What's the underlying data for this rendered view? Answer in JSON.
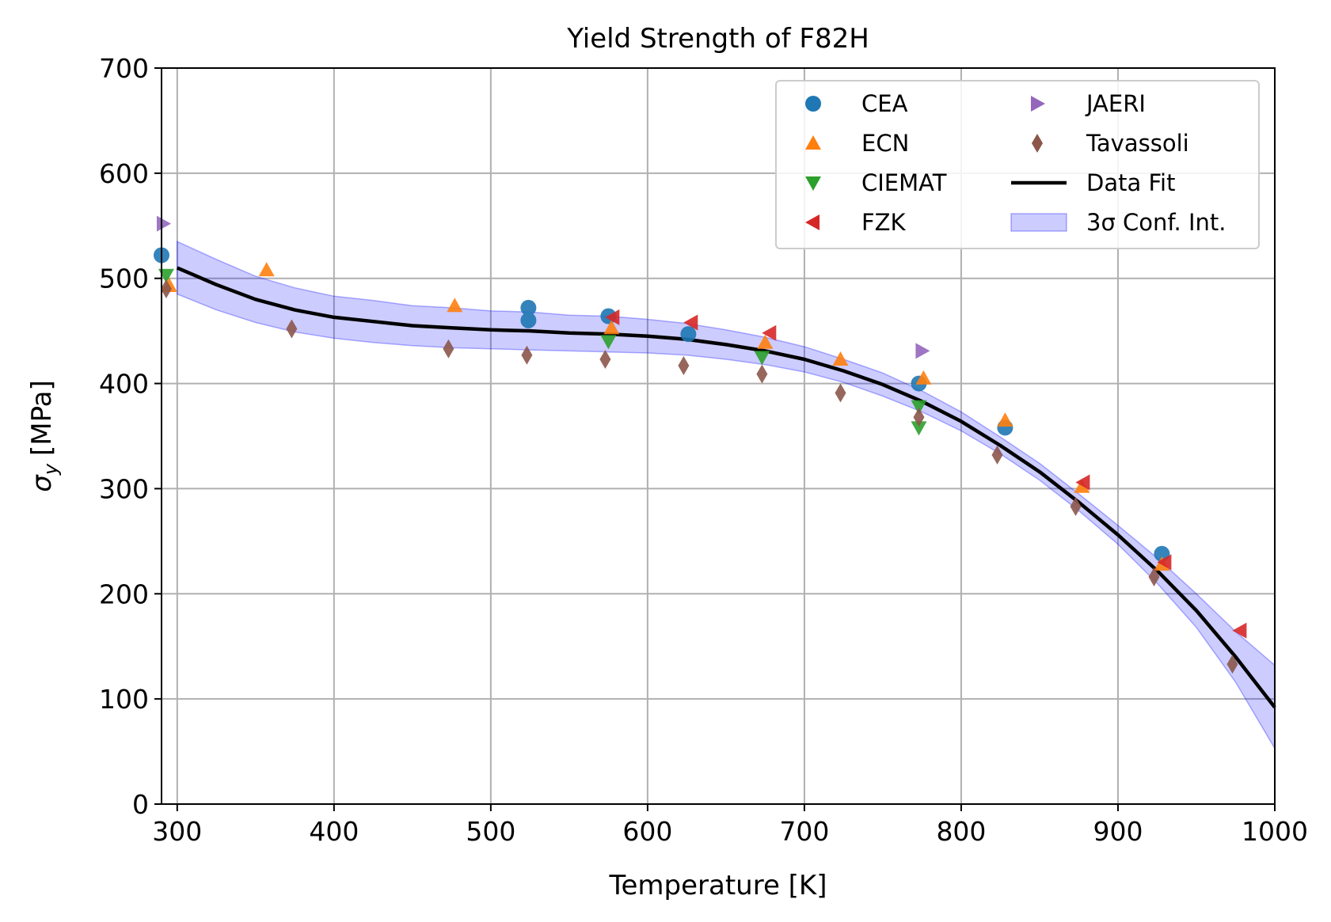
{
  "chart_data": {
    "type": "scatter",
    "title": "Yield Strength of F82H",
    "xlabel": "Temperature [K]",
    "ylabel_symbol": "σ",
    "ylabel_sub": "y",
    "ylabel_unit": "[MPa]",
    "xlim": [
      290,
      1000
    ],
    "ylim": [
      0,
      700
    ],
    "xticks": [
      300,
      400,
      500,
      600,
      700,
      800,
      900,
      1000
    ],
    "yticks": [
      0,
      100,
      200,
      300,
      400,
      500,
      600,
      700
    ],
    "grid": true,
    "legend_position": "top-right",
    "legend_columns": 2,
    "series": [
      {
        "name": "CEA",
        "marker": "circle",
        "color": "#1f77b4",
        "points": [
          [
            290,
            522
          ],
          [
            524,
            472
          ],
          [
            524,
            460
          ],
          [
            575,
            464
          ],
          [
            626,
            447
          ],
          [
            773,
            400
          ],
          [
            828,
            358
          ],
          [
            928,
            238
          ]
        ]
      },
      {
        "name": "ECN",
        "marker": "triangle-up",
        "color": "#ff7f0e",
        "points": [
          [
            295,
            493
          ],
          [
            357,
            508
          ],
          [
            477,
            474
          ],
          [
            577,
            453
          ],
          [
            675,
            439
          ],
          [
            723,
            423
          ],
          [
            776,
            405
          ],
          [
            828,
            365
          ],
          [
            877,
            302
          ],
          [
            928,
            228
          ]
        ]
      },
      {
        "name": "CIEMAT",
        "marker": "triangle-down",
        "color": "#2ca02c",
        "points": [
          [
            293,
            503
          ],
          [
            575,
            440
          ],
          [
            673,
            425
          ],
          [
            773,
            378
          ],
          [
            773,
            358
          ]
        ]
      },
      {
        "name": "FZK",
        "marker": "triangle-left",
        "color": "#d62728",
        "points": [
          [
            578,
            463
          ],
          [
            628,
            458
          ],
          [
            678,
            448
          ],
          [
            878,
            306
          ],
          [
            930,
            230
          ],
          [
            978,
            165
          ]
        ]
      },
      {
        "name": "JAERI",
        "marker": "triangle-right",
        "color": "#9467bd",
        "points": [
          [
            291,
            552
          ],
          [
            775,
            431
          ]
        ]
      },
      {
        "name": "Tavassoli",
        "marker": "thin-diamond",
        "color": "#8c564b",
        "points": [
          [
            293,
            490
          ],
          [
            373,
            452
          ],
          [
            473,
            433
          ],
          [
            523,
            427
          ],
          [
            573,
            423
          ],
          [
            623,
            417
          ],
          [
            673,
            409
          ],
          [
            723,
            391
          ],
          [
            773,
            368
          ],
          [
            823,
            332
          ],
          [
            873,
            283
          ],
          [
            923,
            216
          ],
          [
            973,
            133
          ]
        ]
      }
    ],
    "fit": {
      "name": "Data Fit",
      "color": "#000000",
      "x": [
        300,
        325,
        350,
        375,
        400,
        425,
        450,
        475,
        500,
        525,
        550,
        575,
        600,
        625,
        650,
        675,
        700,
        725,
        750,
        775,
        800,
        825,
        850,
        875,
        900,
        925,
        950,
        975,
        1000
      ],
      "y": [
        510,
        494,
        480,
        470,
        463,
        459,
        455,
        453,
        451,
        450,
        448,
        447,
        445,
        442,
        437,
        431,
        423,
        412,
        399,
        383,
        364,
        341,
        316,
        287,
        256,
        222,
        184,
        140,
        92
      ]
    },
    "band": {
      "name": "3σ Conf. Int.",
      "color": "#0000ff",
      "opacity": 0.2,
      "lower": [
        485,
        470,
        458,
        449,
        443,
        439,
        436,
        434,
        433,
        432,
        431,
        430,
        429,
        427,
        423,
        418,
        411,
        401,
        388,
        373,
        355,
        333,
        308,
        279,
        247,
        210,
        168,
        116,
        53
      ],
      "upper": [
        535,
        518,
        502,
        491,
        483,
        479,
        474,
        472,
        469,
        468,
        465,
        464,
        461,
        457,
        451,
        444,
        435,
        423,
        410,
        393,
        373,
        349,
        324,
        295,
        265,
        234,
        200,
        164,
        132
      ]
    }
  }
}
